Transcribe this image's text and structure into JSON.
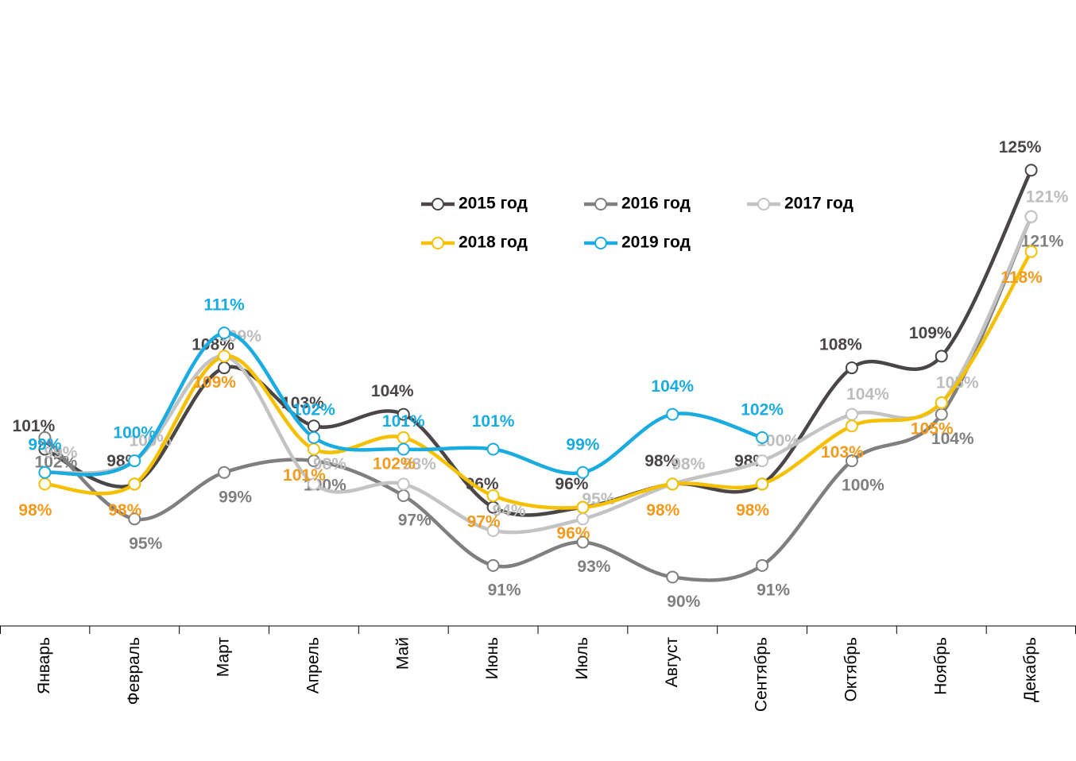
{
  "chart_data": {
    "type": "line",
    "categories": [
      "Январь",
      "Февраль",
      "Март",
      "Апрель",
      "Май",
      "Июнь",
      "Июль",
      "Август",
      "Сентябрь",
      "Октябрь",
      "Ноябрь",
      "Декабрь"
    ],
    "ylim": [
      86,
      138
    ],
    "series": [
      {
        "name": "2015 год",
        "color": "#4a4645",
        "label_color": "#4a4645",
        "values": [
          101,
          98,
          108,
          103,
          104,
          96,
          96,
          98,
          98,
          108,
          109,
          125
        ],
        "value_labels": [
          "101%",
          "98%",
          "108%",
          "103%",
          "104%",
          "96%",
          "96%",
          "98%",
          "98%",
          "108%",
          "109%",
          "125%"
        ]
      },
      {
        "name": "2016 год",
        "color": "#7f7f7f",
        "label_color": "#7f7f7f",
        "values": [
          102,
          95,
          99,
          100,
          97,
          91,
          93,
          90,
          91,
          100,
          104,
          121
        ],
        "value_labels": [
          "102%",
          "95%",
          "99%",
          "100%",
          "97%",
          "91%",
          "93%",
          "90%",
          "91%",
          "100%",
          "104%",
          "121%"
        ]
      },
      {
        "name": "2017 год",
        "color": "#c3c3c3",
        "label_color": "#bdbdbd",
        "values": [
          99,
          100,
          109,
          98,
          98,
          94,
          95,
          98,
          100,
          104,
          105,
          121
        ],
        "value_labels": [
          "99%",
          "100%",
          "109%",
          "98%",
          "98%",
          "94%",
          "95%",
          "98%",
          "100%",
          "104%",
          "105%",
          "121%"
        ]
      },
      {
        "name": "2018 год",
        "color": "#f5c000",
        "label_color": "#f09a1e",
        "values": [
          98,
          98,
          109,
          101,
          102,
          97,
          96,
          98,
          98,
          103,
          105,
          118
        ],
        "value_labels": [
          "98%",
          "98%",
          "109%",
          "101%",
          "102%",
          "97%",
          "96%",
          "98%",
          "98%",
          "103%",
          "105%",
          "118%"
        ]
      },
      {
        "name": "2019 год",
        "color": "#1aabe0",
        "label_color": "#1aabe0",
        "values": [
          99,
          100,
          111,
          102,
          101,
          101,
          99,
          104,
          102,
          null,
          null,
          null
        ],
        "value_labels": [
          "99%",
          "100%",
          "111%",
          "102%",
          "101%",
          "101%",
          "99%",
          "104%",
          "102%",
          null,
          null,
          null
        ]
      }
    ]
  }
}
